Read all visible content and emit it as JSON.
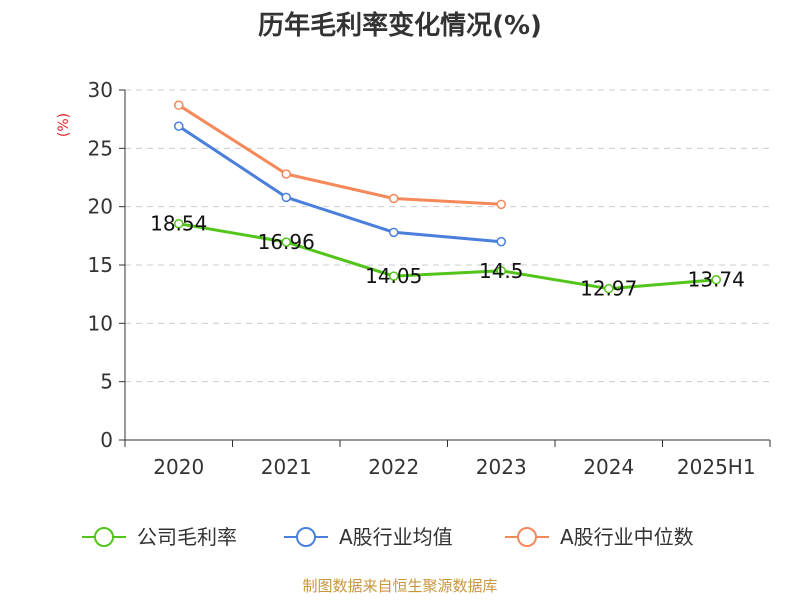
{
  "chart_data": {
    "type": "line",
    "title": "历年毛利率变化情况(%)",
    "ylabel": "(%)",
    "categories": [
      "2020",
      "2021",
      "2022",
      "2023",
      "2024",
      "2025H1"
    ],
    "ylim": [
      0,
      30
    ],
    "yticks": [
      "0",
      "5",
      "10",
      "15",
      "20",
      "25",
      "30"
    ],
    "grid": true,
    "legend_position": "bottom",
    "series": [
      {
        "name": "公司毛利率",
        "color": "#52c41a",
        "values": [
          18.54,
          16.96,
          14.05,
          14.5,
          12.97,
          13.74
        ],
        "labels": [
          "18.54",
          "16.96",
          "14.05",
          "14.5",
          "12.97",
          "13.74"
        ]
      },
      {
        "name": "A股行业均值",
        "color": "#4a7fdc",
        "values": [
          26.9,
          20.8,
          17.8,
          17.0,
          null,
          null
        ]
      },
      {
        "name": "A股行业中位数",
        "color": "#f5895a",
        "values": [
          28.7,
          22.8,
          20.7,
          20.2,
          null,
          null
        ]
      }
    ],
    "source": "制图数据来自恒生聚源数据库"
  }
}
